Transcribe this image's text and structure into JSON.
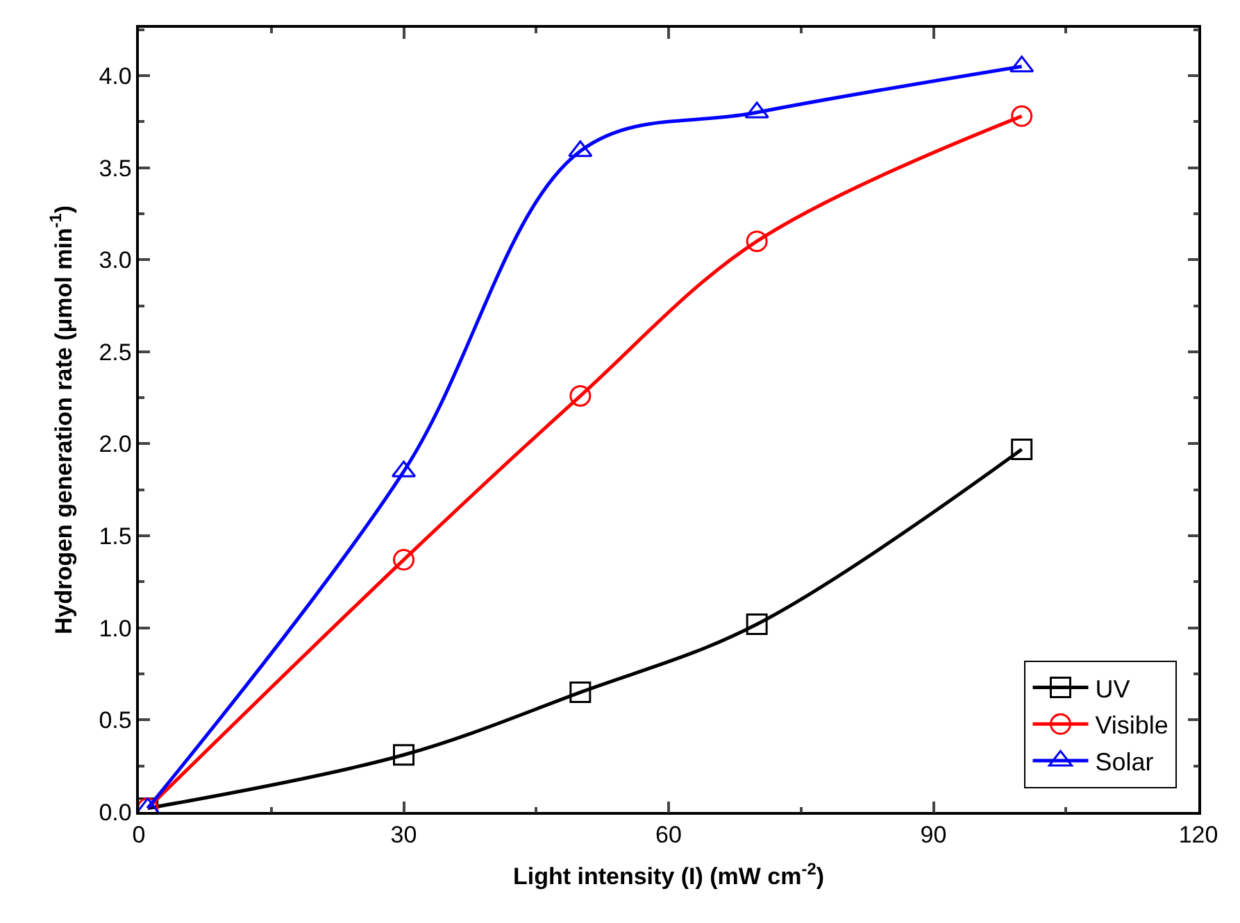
{
  "chart_data": {
    "type": "line",
    "xlabel": "Light intensity (I) (mW cm$^{-2}$)",
    "ylabel": "Hydrogen generation rate (μmol min$^{-1}$)",
    "x": [
      1,
      30,
      50,
      70,
      100
    ],
    "series": [
      {
        "name": "UV",
        "color": "#000000",
        "marker": "square",
        "values": [
          0.02,
          0.31,
          0.65,
          1.02,
          1.97
        ]
      },
      {
        "name": "Visible",
        "color": "#ff0000",
        "marker": "circle",
        "values": [
          0.02,
          1.37,
          2.26,
          3.1,
          3.78
        ]
      },
      {
        "name": "Solar",
        "color": "#0000ff",
        "marker": "triangle",
        "values": [
          0.02,
          1.85,
          3.59,
          3.8,
          4.05
        ]
      }
    ],
    "xlim": [
      0,
      120
    ],
    "xticks": [
      0,
      30,
      60,
      90,
      120
    ],
    "ylim": [
      0,
      4.26
    ],
    "yticks": [
      {
        "value": 0,
        "label": "0.0"
      },
      {
        "value": 0.5,
        "label": "0.5"
      },
      {
        "value": 1,
        "label": "1.0"
      },
      {
        "value": 1.5,
        "label": "1.5"
      },
      {
        "value": 2,
        "label": "2.0"
      },
      {
        "value": 2.5,
        "label": "2.5"
      },
      {
        "value": 3,
        "label": "3.0"
      },
      {
        "value": 3.5,
        "label": "3.5"
      },
      {
        "value": 4,
        "label": "4.0"
      }
    ],
    "legend": "bottom right",
    "line_style": "solid"
  }
}
